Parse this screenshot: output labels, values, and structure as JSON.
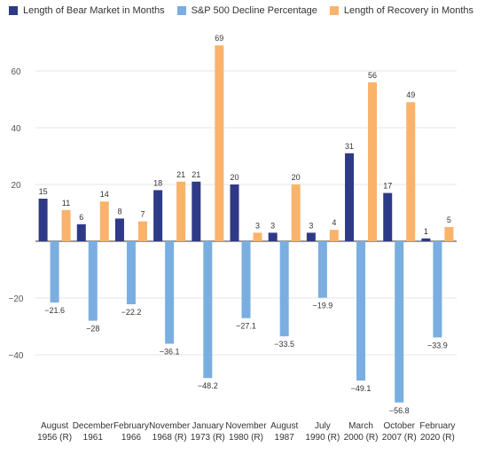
{
  "chart_data": {
    "type": "bar",
    "title": "",
    "xlabel": "",
    "ylabel": "",
    "ylim": [
      -60,
      75
    ],
    "yticks": [
      -40,
      -20,
      0,
      20,
      40,
      60
    ],
    "ytick_labels": [
      "−40",
      "−20",
      "",
      "20",
      "40",
      "60"
    ],
    "grid": true,
    "legend_position": "top-left",
    "categories": [
      [
        "August",
        "1956 (R)"
      ],
      [
        "December",
        "1961"
      ],
      [
        "February",
        "1966"
      ],
      [
        "November",
        "1968 (R)"
      ],
      [
        "January",
        "1973 (R)"
      ],
      [
        "November",
        "1980 (R)"
      ],
      [
        "August",
        "1987"
      ],
      [
        "July",
        "1990 (R)"
      ],
      [
        "March",
        "2000 (R)"
      ],
      [
        "October",
        "2007 (R)"
      ],
      [
        "February",
        "2020 (R)"
      ]
    ],
    "series": [
      {
        "name": "Length of Bear Market in Months",
        "color": "#2e3a87",
        "values": [
          15,
          6,
          8,
          18,
          21,
          20,
          3,
          3,
          31,
          17,
          1
        ],
        "labels": [
          "15",
          "6",
          "8",
          "18",
          "21",
          "20",
          "3",
          "3",
          "31",
          "17",
          "1"
        ]
      },
      {
        "name": "S&P 500 Decline Percentage",
        "color": "#7aaee0",
        "values": [
          -21.6,
          -28,
          -22.2,
          -36.1,
          -48.2,
          -27.1,
          -33.5,
          -19.9,
          -49.1,
          -56.8,
          -33.9
        ],
        "labels": [
          "−21.6",
          "−28",
          "−22.2",
          "−36.1",
          "−48.2",
          "−27.1",
          "−33.5",
          "−19.9",
          "−49.1",
          "−56.8",
          "−33.9"
        ]
      },
      {
        "name": "Length of Recovery in Months",
        "color": "#f9b36b",
        "values": [
          11,
          14,
          7,
          21,
          69,
          3,
          20,
          4,
          56,
          49,
          5
        ],
        "labels": [
          "11",
          "14",
          "7",
          "21",
          "69",
          "3",
          "20",
          "4",
          "56",
          "49",
          "5"
        ]
      }
    ]
  }
}
